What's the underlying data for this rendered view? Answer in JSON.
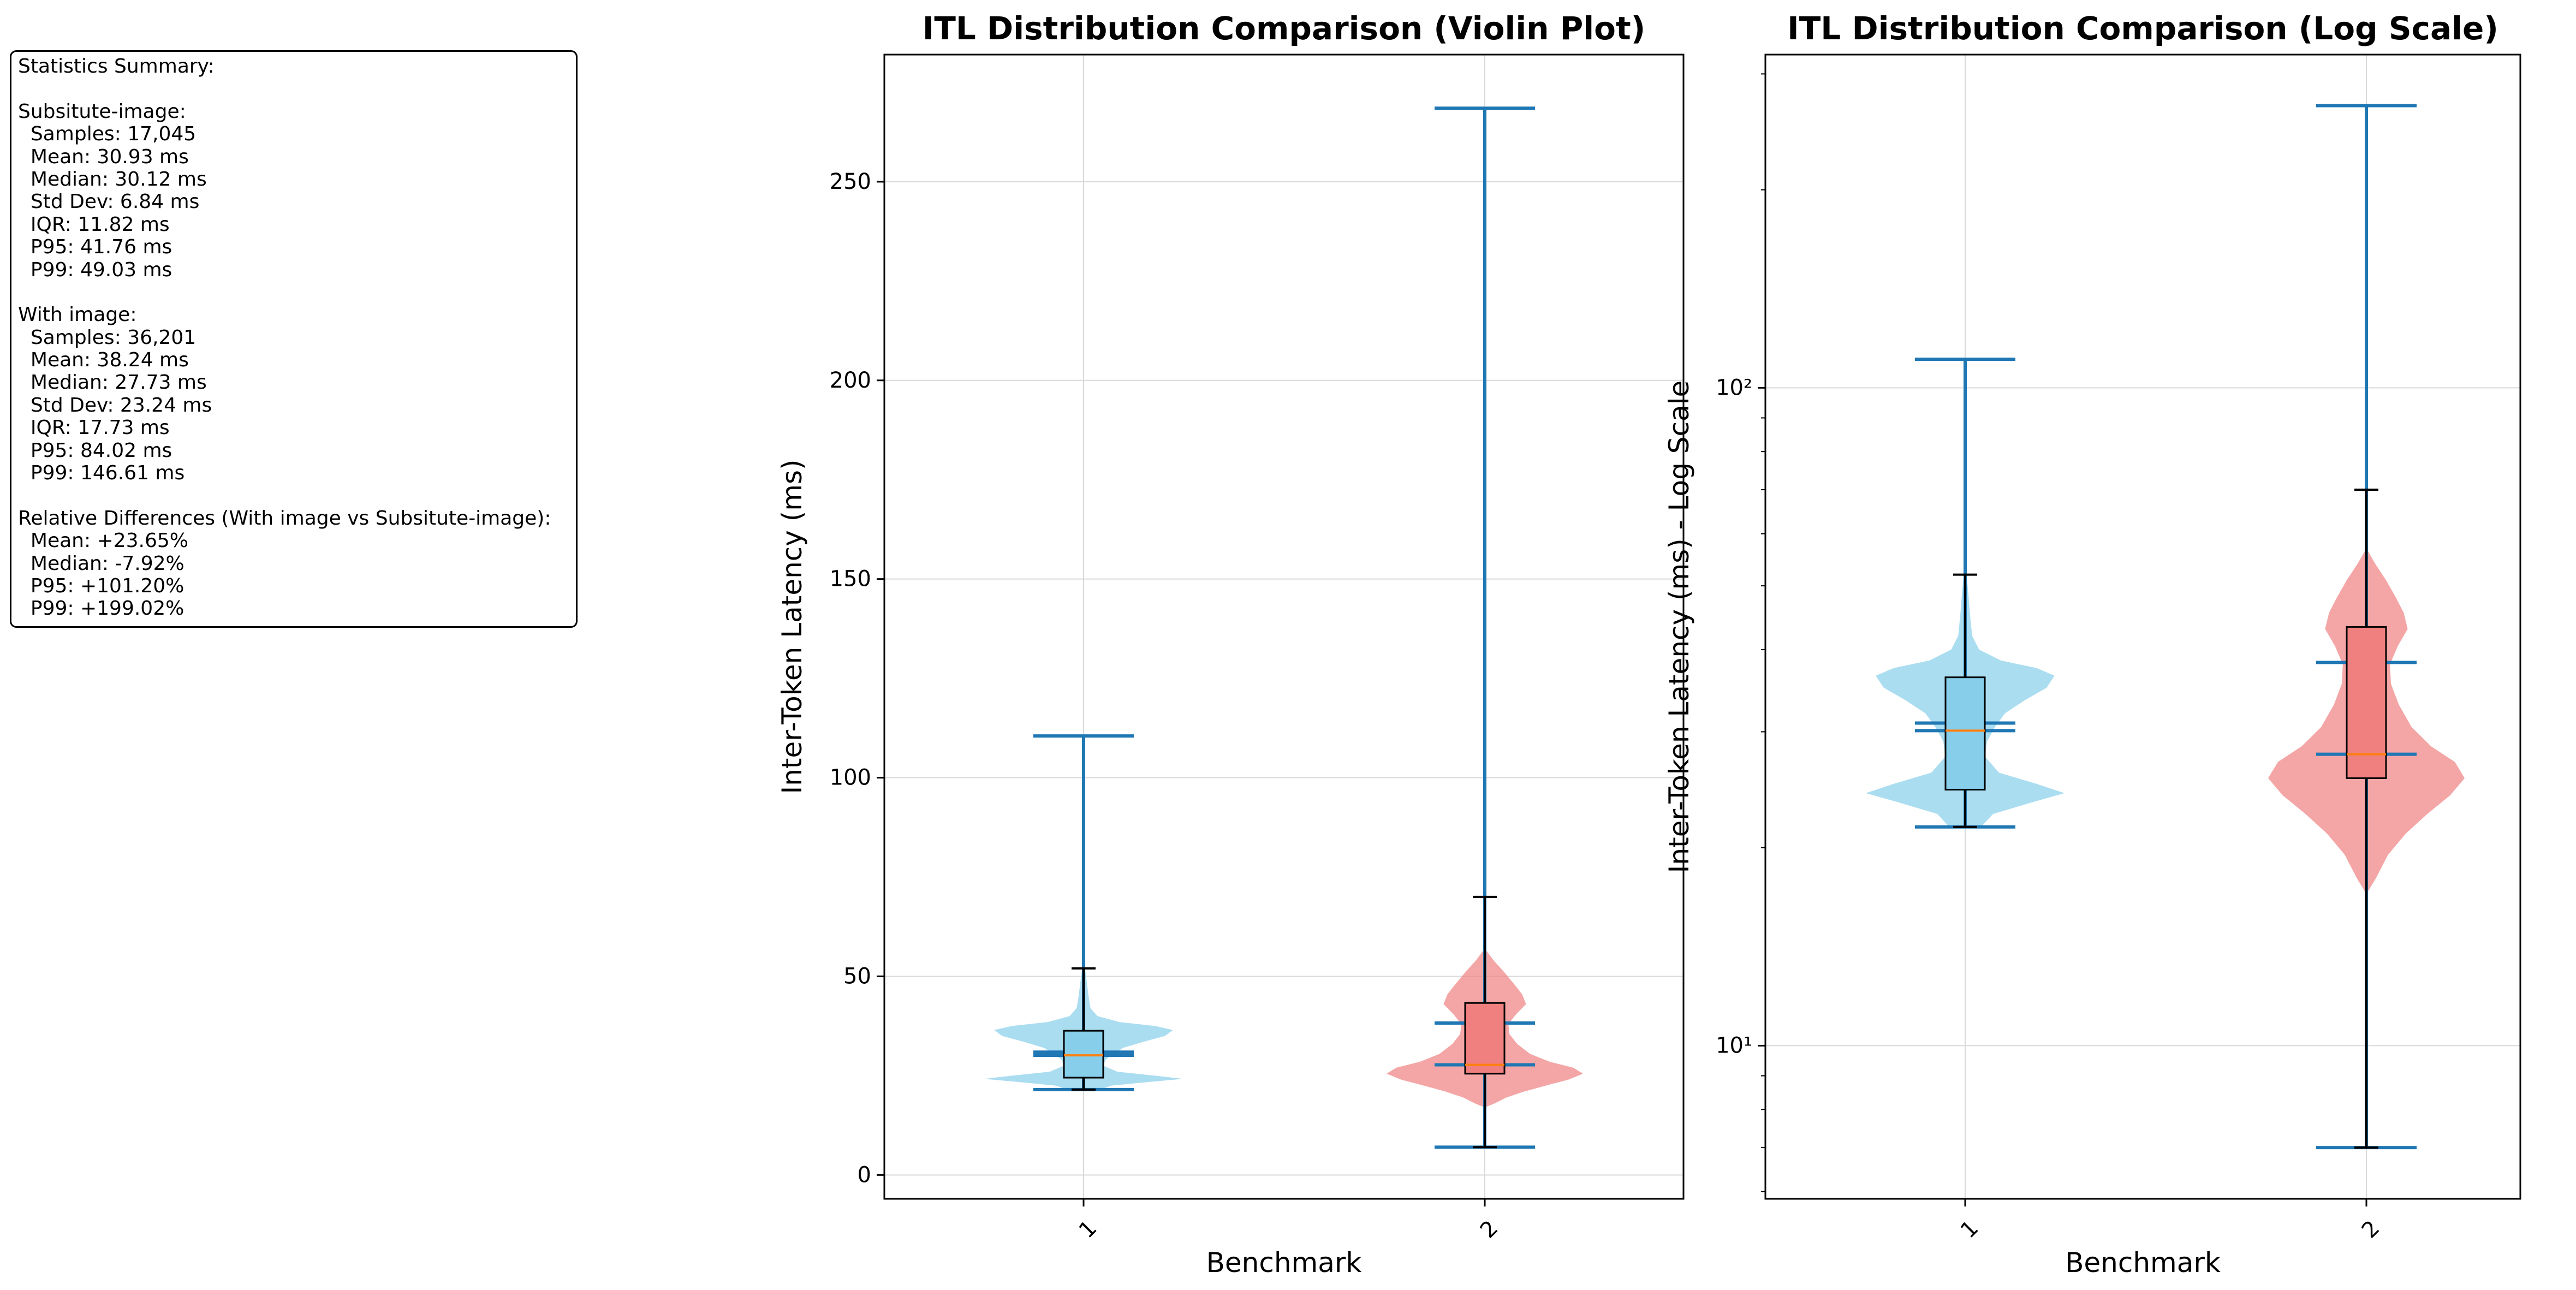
{
  "stats_summary": {
    "lines": [
      "Statistics Summary:",
      "",
      "Subsitute-image:",
      "  Samples: 17,045",
      "  Mean: 30.93 ms",
      "  Median: 30.12 ms",
      "  Std Dev: 6.84 ms",
      "  IQR: 11.82 ms",
      "  P95: 41.76 ms",
      "  P99: 49.03 ms",
      "",
      "With image:",
      "  Samples: 36,201",
      "  Mean: 38.24 ms",
      "  Median: 27.73 ms",
      "  Std Dev: 23.24 ms",
      "  IQR: 17.73 ms",
      "  P95: 84.02 ms",
      "  P99: 146.61 ms",
      "",
      "Relative Differences (With image vs Subsitute-image):",
      "  Mean: +23.65%",
      "  Median: -7.92%",
      "  P95: +101.20%",
      "  P99: +199.02%"
    ]
  },
  "colors": {
    "violin_1": "#87ceeb",
    "violin_2": "#f08080",
    "violin_line": "#1f77b4",
    "median_line": "#ff7f0e",
    "grid": "#d9d9d9"
  },
  "chart_data": [
    {
      "type": "violin",
      "title": "ITL Distribution Comparison (Violin Plot)",
      "xlabel": "Benchmark",
      "ylabel": "Inter-Token Latency (ms)",
      "categories": [
        "1",
        "2"
      ],
      "y_scale": "linear",
      "ylim": [
        -6,
        282
      ],
      "yticks": [
        0,
        50,
        100,
        150,
        200,
        250
      ],
      "ytick_labels": [
        "0",
        "50",
        "100",
        "150",
        "200",
        "250"
      ],
      "grid": true,
      "series": [
        {
          "violin": {
            "min": 21.5,
            "max": 110.5,
            "mean": 30.93,
            "median": 30.12,
            "density": [
              [
                21.5,
                0.16
              ],
              [
                22.5,
                0.28
              ],
              [
                23.5,
                0.7
              ],
              [
                24.2,
                1.0
              ],
              [
                25,
                0.72
              ],
              [
                26,
                0.34
              ],
              [
                27.5,
                0.2
              ],
              [
                29,
                0.22
              ],
              [
                30.5,
                0.3
              ],
              [
                32,
                0.4
              ],
              [
                33.5,
                0.6
              ],
              [
                35,
                0.82
              ],
              [
                36.5,
                0.9
              ],
              [
                37.5,
                0.72
              ],
              [
                38.5,
                0.36
              ],
              [
                40,
                0.14
              ],
              [
                42,
                0.07
              ],
              [
                45,
                0.05
              ],
              [
                48,
                0.035
              ],
              [
                51,
                0.02
              ],
              [
                54,
                0.0
              ]
            ]
          },
          "box": {
            "whisker_low": 21.5,
            "q1": 24.5,
            "median": 30.12,
            "q3": 36.3,
            "whisker_high": 52.0
          }
        },
        {
          "violin": {
            "min": 7,
            "max": 268.5,
            "mean": 38.24,
            "median": 27.73,
            "density": [
              [
                17,
                0.0
              ],
              [
                18,
                0.1
              ],
              [
                19.5,
                0.22
              ],
              [
                21,
                0.4
              ],
              [
                22.5,
                0.62
              ],
              [
                24,
                0.85
              ],
              [
                25.5,
                1.0
              ],
              [
                27,
                0.9
              ],
              [
                28.5,
                0.66
              ],
              [
                30.5,
                0.46
              ],
              [
                33,
                0.33
              ],
              [
                35.5,
                0.25
              ],
              [
                38,
                0.24
              ],
              [
                40.5,
                0.32
              ],
              [
                43,
                0.42
              ],
              [
                45.5,
                0.38
              ],
              [
                48,
                0.3
              ],
              [
                51,
                0.2
              ],
              [
                54,
                0.09
              ],
              [
                57,
                0.0
              ]
            ]
          },
          "box": {
            "whisker_low": 7,
            "q1": 25.5,
            "median": 27.73,
            "q3": 43.3,
            "whisker_high": 70.0
          }
        }
      ]
    },
    {
      "type": "violin",
      "title": "ITL Distribution Comparison (Log Scale)",
      "xlabel": "Benchmark",
      "ylabel": "Inter-Token Latency (ms) - Log Scale",
      "categories": [
        "1",
        "2"
      ],
      "y_scale": "log",
      "ylim": [
        5.85,
        321
      ],
      "yticks": [
        10,
        100
      ],
      "ytick_labels": [
        "10¹",
        "10²"
      ],
      "minor_yticks": [
        6,
        7,
        8,
        9,
        20,
        30,
        40,
        50,
        60,
        70,
        80,
        90,
        200,
        300
      ],
      "grid": true,
      "series": [
        {
          "violin": {
            "min": 21.5,
            "max": 110.5,
            "mean": 30.93,
            "median": 30.12,
            "density": [
              [
                21.5,
                0.16
              ],
              [
                22.5,
                0.28
              ],
              [
                23.5,
                0.7
              ],
              [
                24.2,
                1.0
              ],
              [
                25,
                0.72
              ],
              [
                26,
                0.34
              ],
              [
                27.5,
                0.2
              ],
              [
                29,
                0.22
              ],
              [
                30.5,
                0.3
              ],
              [
                32,
                0.4
              ],
              [
                33.5,
                0.6
              ],
              [
                35,
                0.82
              ],
              [
                36.5,
                0.9
              ],
              [
                37.5,
                0.72
              ],
              [
                38.5,
                0.36
              ],
              [
                40,
                0.14
              ],
              [
                42,
                0.07
              ],
              [
                45,
                0.05
              ],
              [
                48,
                0.035
              ],
              [
                51,
                0.02
              ],
              [
                54,
                0.0
              ]
            ]
          },
          "box": {
            "whisker_low": 21.5,
            "q1": 24.5,
            "median": 30.12,
            "q3": 36.3,
            "whisker_high": 52.0
          }
        },
        {
          "violin": {
            "min": 7,
            "max": 268.5,
            "mean": 38.24,
            "median": 27.73,
            "density": [
              [
                17,
                0.0
              ],
              [
                18,
                0.1
              ],
              [
                19.5,
                0.22
              ],
              [
                21,
                0.4
              ],
              [
                22.5,
                0.62
              ],
              [
                24,
                0.85
              ],
              [
                25.5,
                1.0
              ],
              [
                27,
                0.9
              ],
              [
                28.5,
                0.66
              ],
              [
                30.5,
                0.46
              ],
              [
                33,
                0.33
              ],
              [
                35.5,
                0.25
              ],
              [
                38,
                0.24
              ],
              [
                40.5,
                0.32
              ],
              [
                43,
                0.42
              ],
              [
                45.5,
                0.38
              ],
              [
                48,
                0.3
              ],
              [
                51,
                0.2
              ],
              [
                54,
                0.09
              ],
              [
                57,
                0.0
              ]
            ]
          },
          "box": {
            "whisker_low": 7,
            "q1": 25.5,
            "median": 27.73,
            "q3": 43.3,
            "whisker_high": 70.0
          }
        }
      ]
    }
  ]
}
